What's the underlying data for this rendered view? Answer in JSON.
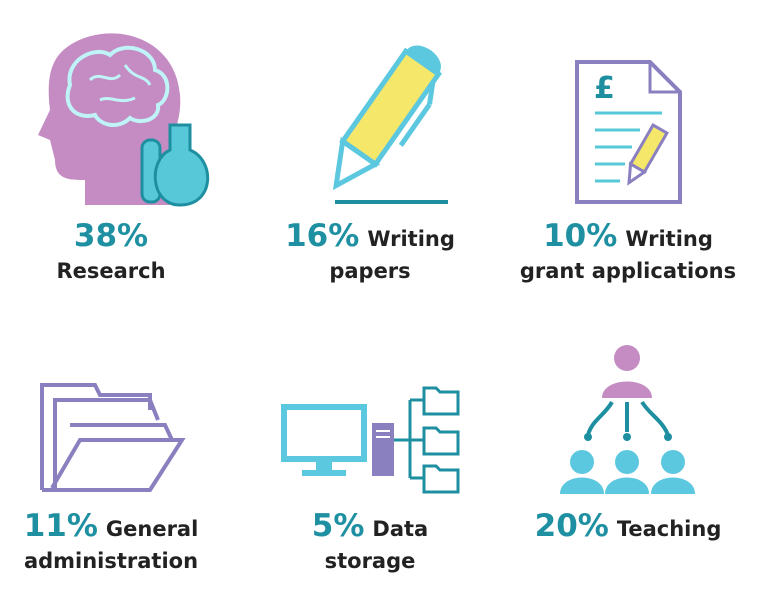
{
  "items": [
    {
      "percent": "38%",
      "label": [
        "",
        "Research"
      ]
    },
    {
      "percent": "16%",
      "label": [
        "Writing",
        "papers"
      ]
    },
    {
      "percent": "10%",
      "label": [
        "Writing",
        "grant applications"
      ]
    },
    {
      "percent": "11%",
      "label": [
        "General",
        "administration"
      ]
    },
    {
      "percent": "5%",
      "label": [
        "Data",
        "storage"
      ]
    },
    {
      "percent": "20%",
      "label": [
        "Teaching"
      ]
    }
  ],
  "document_symbol": "£"
}
